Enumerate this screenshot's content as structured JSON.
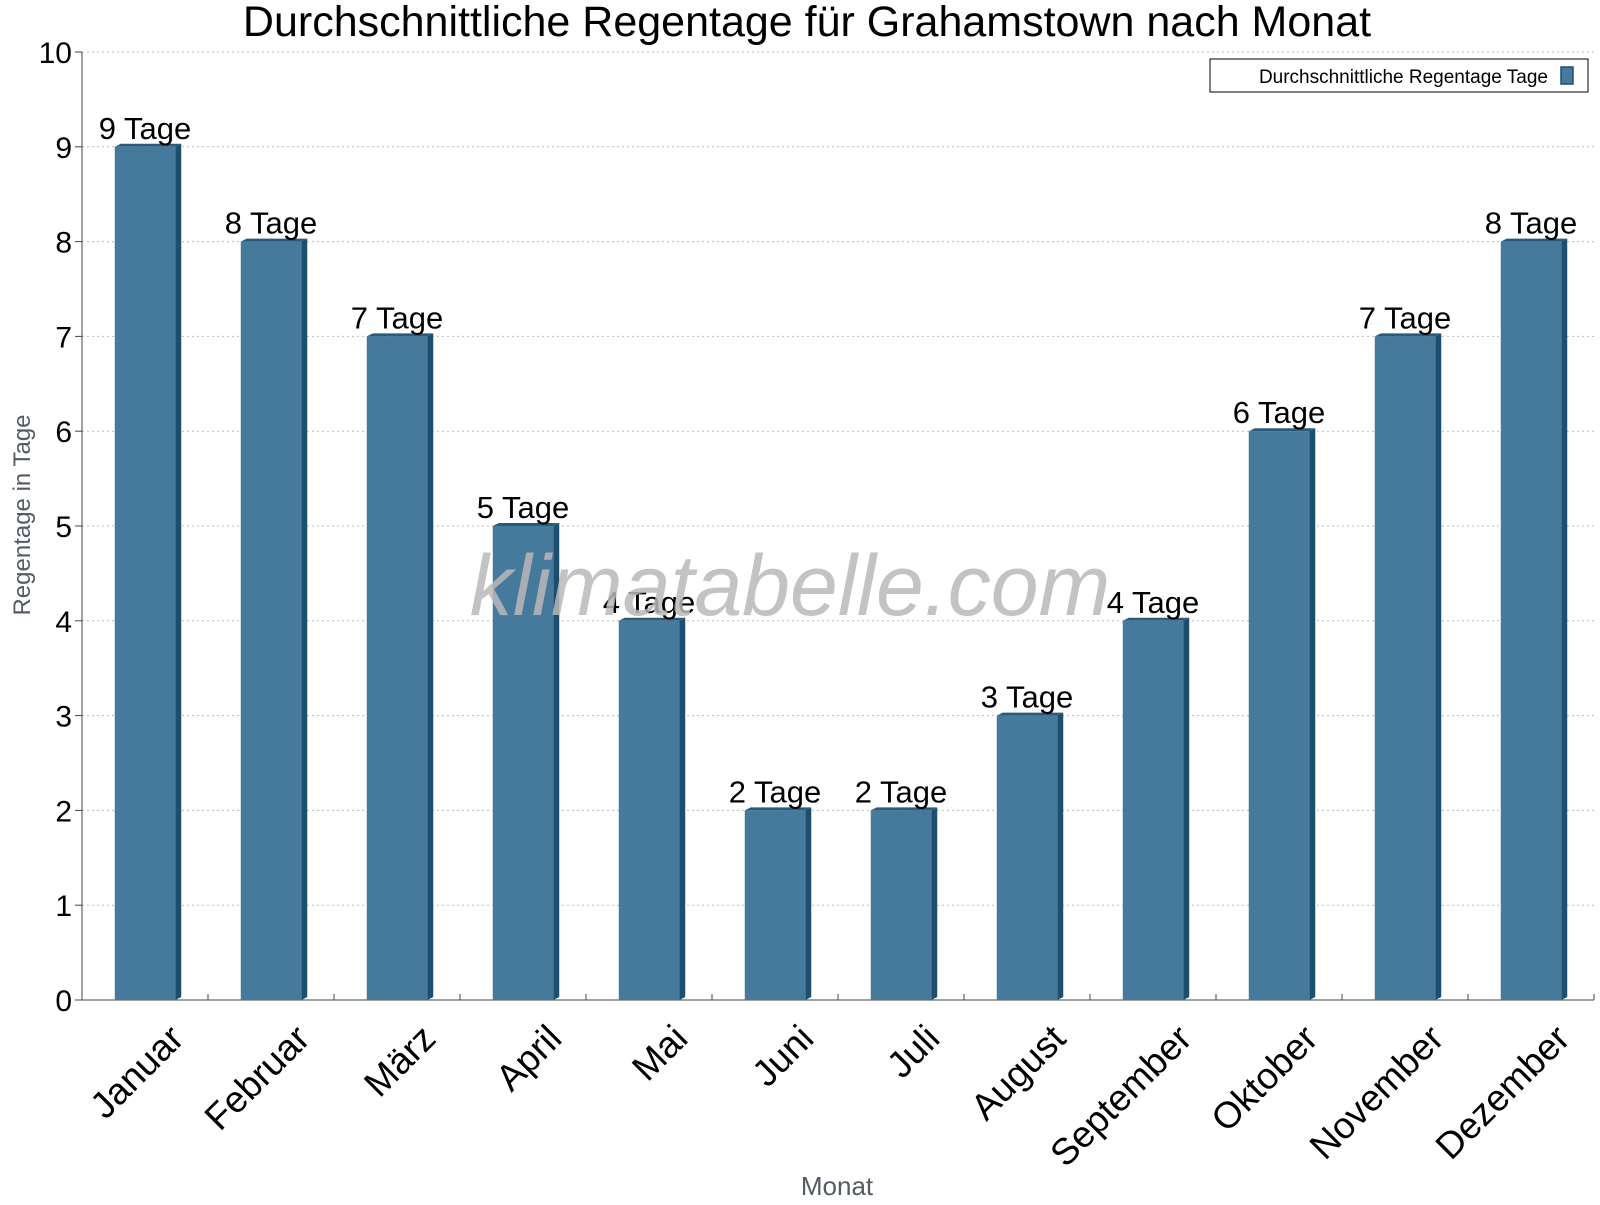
{
  "chart_data": {
    "type": "bar",
    "title": "Durchschnittliche Regentage für Grahamstown nach Monat",
    "xlabel": "Monat",
    "ylabel": "Regentage in Tage",
    "categories": [
      "Januar",
      "Februar",
      "März",
      "April",
      "Mai",
      "Juni",
      "Juli",
      "August",
      "September",
      "Oktober",
      "November",
      "Dezember"
    ],
    "series": [
      {
        "name": "Durchschnittliche Regentage Tage",
        "values": [
          9,
          8,
          7,
          5,
          4,
          2,
          2,
          3,
          4,
          6,
          7,
          8
        ],
        "data_labels": [
          "9 Tage",
          "8 Tage",
          "7 Tage",
          "5 Tage",
          "4 Tage",
          "2 Tage",
          "2 Tage",
          "3 Tage",
          "4 Tage",
          "6 Tage",
          "7 Tage",
          "8 Tage"
        ]
      }
    ],
    "ylim": [
      0,
      10
    ],
    "yticks": [
      0,
      1,
      2,
      3,
      4,
      5,
      6,
      7,
      8,
      9,
      10
    ],
    "grid": true,
    "legend_position": "top-right",
    "colors": {
      "bar": "#467a9c",
      "bar_side": "#1d4e6e",
      "bar_top": "#2a5b7c",
      "grid": "#bbbbbb",
      "axis": "#444444",
      "axis_label": "#555b66",
      "text": "#000000",
      "watermark": "#b8b8b8"
    }
  },
  "watermark": "klimatabelle.com"
}
